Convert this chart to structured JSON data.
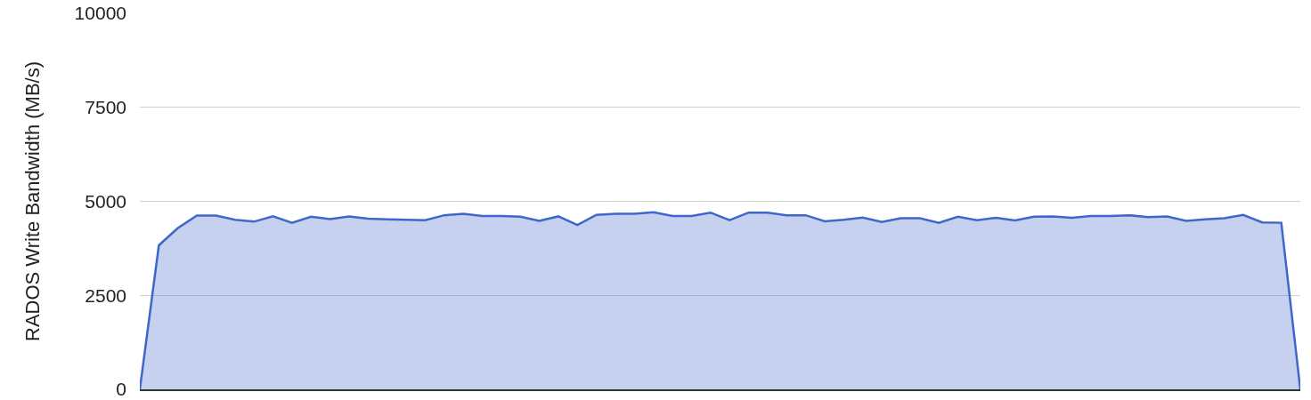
{
  "chart_data": {
    "type": "area",
    "ylabel": "RADOS Write Bandwidth (MB/s)",
    "categories": [
      null,
      null,
      null,
      null,
      null,
      null,
      null,
      null,
      null,
      null,
      null,
      null,
      null,
      null,
      null,
      null,
      null,
      null,
      null,
      null,
      null,
      null,
      null,
      null,
      null,
      null,
      null,
      null,
      null,
      null,
      null,
      null,
      null,
      null,
      null,
      null,
      null,
      null,
      null,
      null,
      null,
      null,
      null,
      null,
      null,
      null,
      null,
      null,
      null,
      null,
      null,
      null,
      null,
      null,
      null,
      null,
      null,
      null,
      null,
      null,
      null,
      null
    ],
    "series": [
      {
        "color": "#3f66c9",
        "values": [
          0,
          3830,
          4290,
          4620,
          4620,
          4510,
          4460,
          4600,
          4430,
          4590,
          4530,
          4600,
          4540,
          4520,
          4510,
          4500,
          4630,
          4670,
          4610,
          4610,
          4590,
          4480,
          4600,
          4370,
          4640,
          4670,
          4670,
          4710,
          4610,
          4610,
          4700,
          4500,
          4700,
          4700,
          4630,
          4630,
          4470,
          4510,
          4570,
          4450,
          4550,
          4550,
          4430,
          4590,
          4500,
          4560,
          4490,
          4590,
          4600,
          4560,
          4610,
          4610,
          4630,
          4580,
          4600,
          4480,
          4520,
          4550,
          4640,
          4440,
          4430,
          0
        ]
      }
    ],
    "ylim": [
      0,
      10000
    ],
    "yticks": [
      0,
      2500,
      5000,
      7500,
      10000
    ],
    "grid": "y",
    "tick_labels": "y",
    "marker": "none",
    "line_style": "solid"
  }
}
